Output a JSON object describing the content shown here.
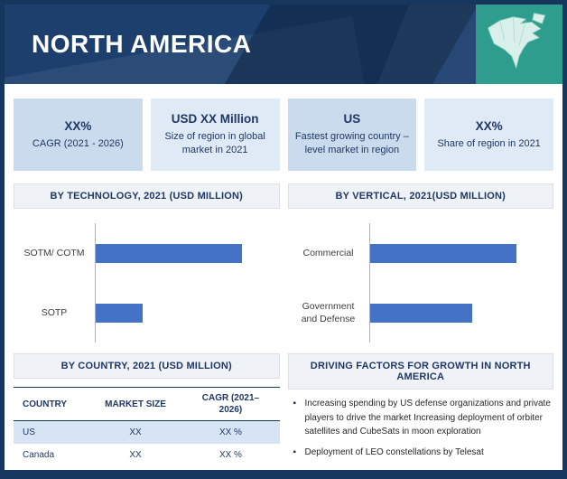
{
  "theme": {
    "navy": "#17365d",
    "banner_blue": "#1c3f6e",
    "teal": "#2f9d8e",
    "bar_blue": "#4472c4",
    "stat_blue_dark": "#cbdbee",
    "stat_blue_light": "#dfeaf6",
    "panel_header_bg": "#eff2f6"
  },
  "header": {
    "title": "NORTH AMERICA"
  },
  "stats": [
    {
      "value": "XX%",
      "label": "CAGR (2021 - 2026)"
    },
    {
      "value": "USD XX Million",
      "label": "Size of region in global market in 2021"
    },
    {
      "value": "US",
      "label": "Fastest growing country – level market in region"
    },
    {
      "value": "XX%",
      "label": "Share of region in 2021"
    }
  ],
  "chart_data": [
    {
      "type": "bar",
      "orientation": "horizontal",
      "title": "BY TECHNOLOGY, 2021 (USD MILLION)",
      "categories": [
        "SOTM/ COTM",
        "SOTP"
      ],
      "values": [
        100,
        32
      ],
      "xlim": [
        0,
        118
      ],
      "xlabel": "",
      "ylabel": "",
      "grid": false,
      "legend": false
    },
    {
      "type": "bar",
      "orientation": "horizontal",
      "title": "BY VERTICAL, 2021(USD MILLION)",
      "categories": [
        "Commercial",
        "Government and Defense"
      ],
      "values": [
        100,
        70
      ],
      "xlim": [
        0,
        118
      ],
      "xlabel": "",
      "ylabel": "",
      "grid": false,
      "legend": false
    }
  ],
  "country_table": {
    "title": "BY COUNTRY, 2021 (USD MILLION)",
    "headers": [
      "COUNTRY",
      "MARKET SIZE",
      "CAGR (2021–2026)"
    ],
    "rows": [
      [
        "US",
        "XX",
        "XX %"
      ],
      [
        "Canada",
        "XX",
        "XX %"
      ]
    ]
  },
  "driving_factors": {
    "title": "DRIVING FACTORS FOR GROWTH IN NORTH AMERICA",
    "bullets": [
      "Increasing spending by US defense organizations and private players to drive the market Increasing deployment of orbiter satellites and CubeSats in moon exploration",
      "Deployment of LEO constellations by Telesat"
    ]
  }
}
